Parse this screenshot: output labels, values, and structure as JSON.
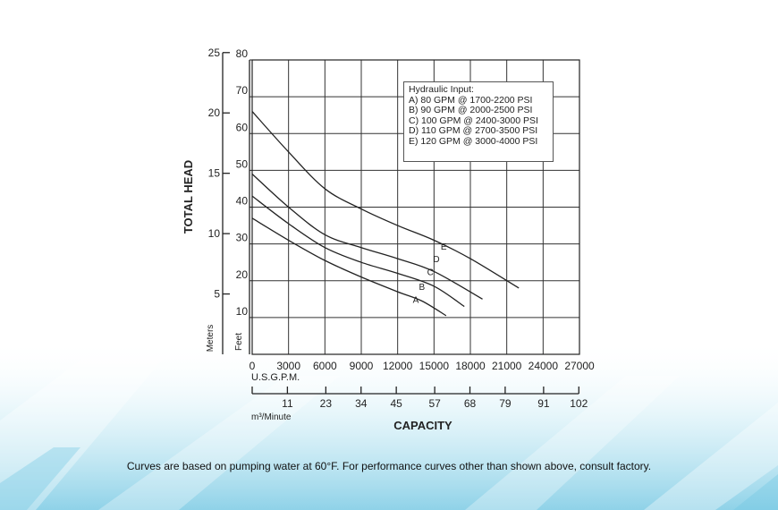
{
  "footnote": "Curves are based on pumping water at 60°F. For performance curves other than shown above, consult factory.",
  "chart_data": {
    "type": "line",
    "ylabel": "TOTAL HEAD",
    "xlabel": "CAPACITY",
    "y_feet_unit": "Feet",
    "y_meters_unit": "Meters",
    "x_gpm_unit": "U.S.G.P.M.",
    "x_m3_unit": "m³/Minute",
    "xlim": [
      0,
      27000
    ],
    "ylim": [
      0,
      80
    ],
    "grid": true,
    "legend_position": "top-right",
    "x_ticks_gpm": [
      "0",
      "3000",
      "6000",
      "9000",
      "12000",
      "15000",
      "18000",
      "21000",
      "24000",
      "27000"
    ],
    "y_ticks_feet": [
      "10",
      "20",
      "30",
      "40",
      "50",
      "60",
      "70",
      "80"
    ],
    "y_ticks_meters": [
      {
        "label": "5",
        "feet": 16.4
      },
      {
        "label": "10",
        "feet": 32.8
      },
      {
        "label": "15",
        "feet": 49.2
      },
      {
        "label": "20",
        "feet": 65.6
      },
      {
        "label": "25",
        "feet": 82.0
      }
    ],
    "x_ticks_m3": [
      {
        "label": "11",
        "gpm": 2906
      },
      {
        "label": "23",
        "gpm": 6076
      },
      {
        "label": "34",
        "gpm": 8982
      },
      {
        "label": "45",
        "gpm": 11888
      },
      {
        "label": "57",
        "gpm": 15058
      },
      {
        "label": "68",
        "gpm": 17964
      },
      {
        "label": "79",
        "gpm": 20870
      },
      {
        "label": "91",
        "gpm": 24040
      },
      {
        "label": "102",
        "gpm": 26946
      }
    ],
    "legend_title": "Hydraulic Input:",
    "legend_entries": [
      "A) 80 GPM @ 1700-2200 PSI",
      "B) 90 GPM @ 2000-2500 PSI",
      "C) 100 GPM @ 2400-3000 PSI",
      "D) 110 GPM @ 2700-3500 PSI",
      "E) 120 GPM @ 3000-4000 PSI"
    ],
    "series": [
      {
        "name": "A",
        "label_at": [
          13500,
          14
        ],
        "x": [
          0,
          3000,
          6000,
          9000,
          12000,
          14000,
          16000
        ],
        "y": [
          37,
          31,
          25.5,
          21,
          17,
          14.5,
          10.5
        ]
      },
      {
        "name": "B",
        "label_at": [
          14000,
          17.5
        ],
        "x": [
          0,
          3000,
          6000,
          9000,
          12000,
          15000,
          17500
        ],
        "y": [
          43,
          35.5,
          29,
          25,
          22,
          18.5,
          13
        ]
      },
      {
        "name": "C",
        "label_at": [
          14700,
          21.5
        ],
        "x": [
          0,
          3000,
          6000,
          9000,
          12000,
          15000,
          19000
        ],
        "y": [
          49,
          40,
          32.5,
          29,
          26,
          22.5,
          15
        ]
      },
      {
        "name": "D",
        "label_at": [
          15200,
          25
        ]
      },
      {
        "name": "E",
        "label_at": [
          15800,
          28.5
        ],
        "x": [
          0,
          3000,
          6000,
          9000,
          12000,
          15000,
          18000,
          22000
        ],
        "y": [
          66,
          55,
          45,
          39.5,
          35,
          31,
          26,
          18
        ]
      }
    ]
  }
}
